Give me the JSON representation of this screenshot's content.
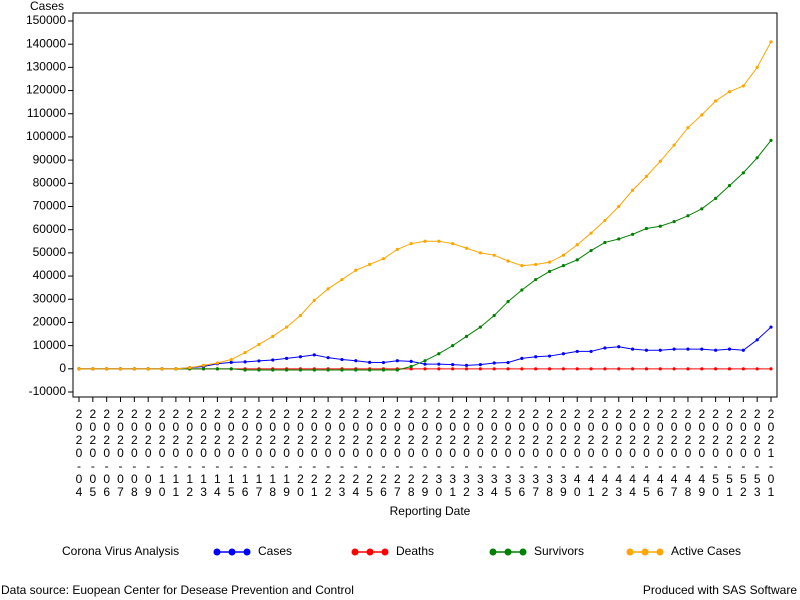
{
  "chart_data": {
    "type": "line",
    "y_label": "Cases",
    "x_label": "Reporting Date",
    "legend_title": "Corona Virus Analysis",
    "source": "Data source: Euopean Center for Desease Prevention and Control",
    "credit": "Produced with SAS Software",
    "categories": [
      "2020-04",
      "2020-05",
      "2020-06",
      "2020-07",
      "2020-08",
      "2020-09",
      "2020-10",
      "2020-11",
      "2020-12",
      "2020-13",
      "2020-14",
      "2020-15",
      "2020-16",
      "2020-17",
      "2020-18",
      "2020-19",
      "2020-20",
      "2020-21",
      "2020-22",
      "2020-23",
      "2020-24",
      "2020-25",
      "2020-26",
      "2020-27",
      "2020-28",
      "2020-29",
      "2020-30",
      "2020-31",
      "2020-32",
      "2020-33",
      "2020-34",
      "2020-35",
      "2020-36",
      "2020-37",
      "2020-38",
      "2020-39",
      "2020-40",
      "2020-41",
      "2020-42",
      "2020-43",
      "2020-44",
      "2020-45",
      "2020-46",
      "2020-47",
      "2020-48",
      "2020-49",
      "2020-50",
      "2020-51",
      "2020-52",
      "2020-53",
      "2021-01"
    ],
    "ylim": [
      -10000,
      150000
    ],
    "yticks": [
      -10000,
      0,
      10000,
      20000,
      30000,
      40000,
      50000,
      60000,
      70000,
      80000,
      90000,
      100000,
      110000,
      120000,
      130000,
      140000,
      150000
    ],
    "series": [
      {
        "name": "Cases",
        "color": "#0000ff",
        "values": [
          0,
          0,
          0,
          0,
          0,
          0,
          0,
          0,
          500,
          1000,
          2200,
          2800,
          3000,
          3400,
          3800,
          4500,
          5200,
          6000,
          4800,
          4000,
          3500,
          2800,
          2700,
          3500,
          3200,
          2000,
          2000,
          1800,
          1500,
          1800,
          2500,
          2700,
          4500,
          5200,
          5500,
          6500,
          7500,
          7500,
          9000,
          9500,
          8500,
          8000,
          8000,
          8500,
          8500,
          8500,
          8000,
          8500,
          8000,
          12500,
          18000
        ]
      },
      {
        "name": "Deaths",
        "color": "#ff0000",
        "values": [
          0,
          0,
          0,
          0,
          0,
          0,
          0,
          0,
          0,
          0,
          0,
          0,
          0,
          0,
          0,
          0,
          0,
          0,
          0,
          0,
          0,
          0,
          0,
          0,
          0,
          0,
          0,
          0,
          0,
          0,
          0,
          0,
          0,
          0,
          0,
          0,
          0,
          0,
          0,
          0,
          0,
          0,
          0,
          0,
          0,
          0,
          0,
          0,
          0,
          0,
          0
        ]
      },
      {
        "name": "Survivors",
        "color": "#008000",
        "values": [
          0,
          0,
          0,
          0,
          0,
          0,
          0,
          0,
          0,
          0,
          0,
          0,
          -500,
          -500,
          -500,
          -500,
          -500,
          -500,
          -500,
          -500,
          -500,
          -500,
          -500,
          -500,
          1000,
          3500,
          6500,
          10000,
          14000,
          18000,
          23000,
          29000,
          34000,
          38500,
          42000,
          44500,
          47000,
          51000,
          54500,
          56000,
          58000,
          60500,
          61500,
          63500,
          66000,
          69000,
          73500,
          79000,
          84500,
          91000,
          98500
        ]
      },
      {
        "name": "Active Cases",
        "color": "#ffa500",
        "values": [
          0,
          0,
          0,
          0,
          0,
          0,
          0,
          0,
          500,
          1500,
          2500,
          4000,
          7000,
          10500,
          14000,
          18000,
          23000,
          29500,
          34500,
          38500,
          42500,
          45000,
          47500,
          51500,
          54000,
          55000,
          55000,
          54000,
          52000,
          50000,
          49000,
          46500,
          44500,
          45000,
          46000,
          49000,
          53500,
          58500,
          64000,
          70000,
          77000,
          83000,
          89500,
          96500,
          104000,
          109500,
          115500,
          119500,
          122000,
          130000,
          141000
        ]
      }
    ]
  }
}
